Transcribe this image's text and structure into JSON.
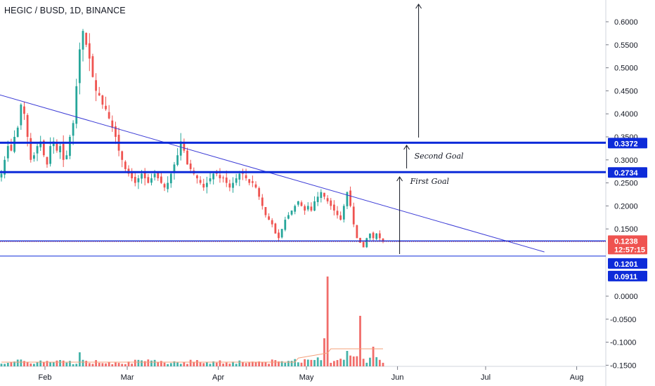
{
  "header": {
    "symbol_title": "HEGIC / BUSD, 1D, BINANCE"
  },
  "colors": {
    "up_candle": "#26a69a",
    "down_candle": "#ef5350",
    "level_line": "#0d2bd9",
    "trend_line": "#3b3bd6",
    "price_badge": "#ef5350",
    "level_badge": "#0d2bd9",
    "grid": "#ffffff",
    "volume_ma": "#f5a07a"
  },
  "chart_data": {
    "type": "candlestick",
    "title": "HEGIC / BUSD, 1D, BINANCE",
    "x_ticks": [
      "Feb",
      "Mar",
      "Apr",
      "May",
      "Jun",
      "Jul",
      "Aug"
    ],
    "price_ticks": [
      "0.6000",
      "0.5500",
      "0.5000",
      "0.4500",
      "0.4000",
      "0.3500",
      "0.3000",
      "0.2500",
      "0.2000",
      "0.1500"
    ],
    "lower_ticks": [
      "0.0000",
      "-0.0500",
      "-0.1000",
      "-0.1500"
    ],
    "price_axis_range": [
      0.09,
      0.64
    ],
    "lower_axis_range": [
      -0.15,
      0.05
    ],
    "price_levels": [
      {
        "name": "second_goal",
        "value": 0.3372,
        "label": "0.3372"
      },
      {
        "name": "first_goal",
        "value": 0.2734,
        "label": "0.2734"
      },
      {
        "name": "current",
        "value": 0.1238,
        "label": "0.1238"
      },
      {
        "name": "support",
        "value": 0.1201,
        "label": "0.1201"
      },
      {
        "name": "bottom",
        "value": 0.0911,
        "label": "0.0911"
      }
    ],
    "countdown": "12:57:15",
    "annotations": [
      {
        "text": "Second Goal"
      },
      {
        "text": "First Goal"
      }
    ],
    "trendline": {
      "start": {
        "date": "2021-01-01",
        "price": 0.47
      },
      "end": {
        "date": "2021-07-21",
        "price": 0.1
      }
    },
    "close_series": [
      0.27,
      0.3,
      0.33,
      0.32,
      0.35,
      0.37,
      0.42,
      0.4,
      0.35,
      0.3,
      0.31,
      0.33,
      0.34,
      0.31,
      0.29,
      0.33,
      0.34,
      0.32,
      0.33,
      0.3,
      0.31,
      0.35,
      0.38,
      0.46,
      0.54,
      0.58,
      0.55,
      0.52,
      0.48,
      0.45,
      0.44,
      0.42,
      0.41,
      0.39,
      0.37,
      0.35,
      0.32,
      0.3,
      0.28,
      0.27,
      0.26,
      0.25,
      0.26,
      0.27,
      0.26,
      0.25,
      0.26,
      0.27,
      0.26,
      0.25,
      0.24,
      0.25,
      0.27,
      0.29,
      0.31,
      0.34,
      0.32,
      0.29,
      0.28,
      0.27,
      0.26,
      0.25,
      0.24,
      0.25,
      0.26,
      0.27,
      0.27,
      0.26,
      0.26,
      0.25,
      0.24,
      0.25,
      0.26,
      0.27,
      0.27,
      0.26,
      0.25,
      0.25,
      0.24,
      0.22,
      0.2,
      0.18,
      0.17,
      0.16,
      0.14,
      0.13,
      0.15,
      0.17,
      0.18,
      0.19,
      0.2,
      0.21,
      0.2,
      0.19,
      0.2,
      0.19,
      0.21,
      0.22,
      0.23,
      0.22,
      0.21,
      0.2,
      0.19,
      0.18,
      0.17,
      0.2,
      0.23,
      0.2,
      0.16,
      0.13,
      0.12,
      0.11,
      0.13,
      0.14,
      0.13,
      0.14,
      0.13,
      0.124
    ]
  }
}
